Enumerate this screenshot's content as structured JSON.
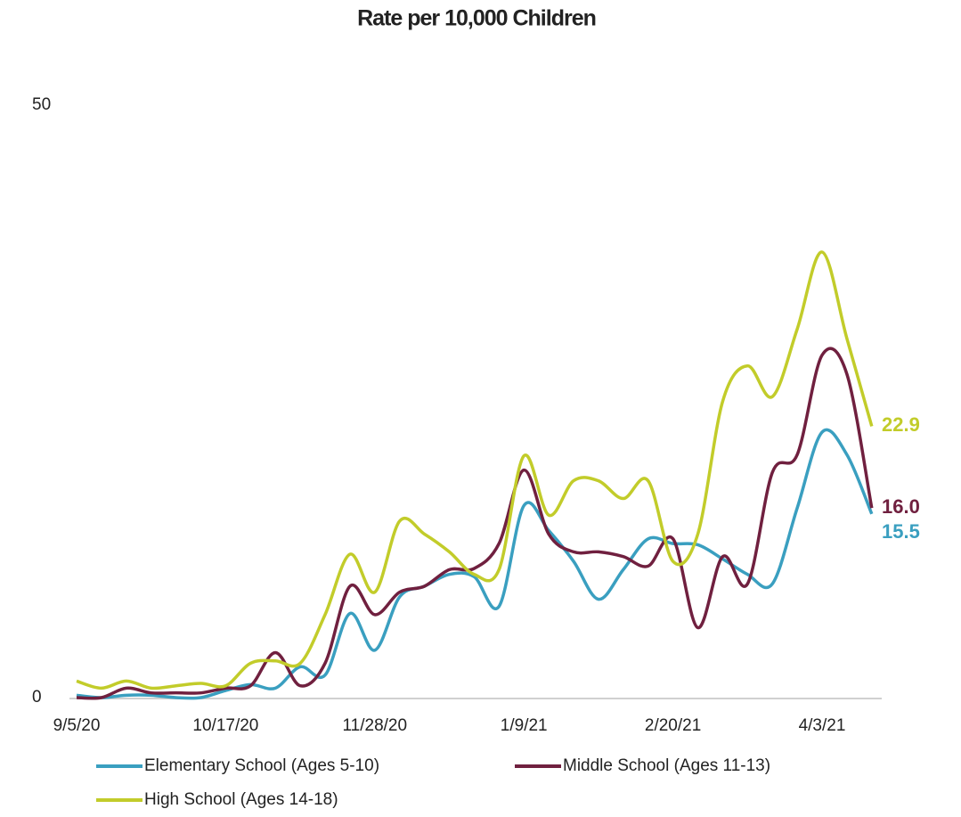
{
  "chart_data": {
    "type": "line",
    "title": "Rate per 10,000 Children",
    "categories": [
      "9/5/20",
      null,
      null,
      null,
      null,
      null,
      "10/17/20",
      null,
      null,
      null,
      null,
      null,
      "11/28/20",
      null,
      null,
      null,
      null,
      null,
      "1/9/21",
      null,
      null,
      null,
      null,
      null,
      "2/20/21",
      null,
      null,
      null,
      null,
      null,
      "4/3/21",
      null,
      null
    ],
    "ylim": [
      0,
      50
    ],
    "yticks": [
      0,
      50
    ],
    "grid": false,
    "series": [
      {
        "name": "Elementary School (Ages 5-10)",
        "color": "#3a9fc0",
        "values": [
          0.2,
          0,
          0.2,
          0.2,
          0,
          0,
          0.6,
          1.1,
          0.8,
          2.6,
          1.9,
          7.1,
          4.0,
          8.5,
          9.4,
          10.4,
          10.2,
          7.7,
          16.2,
          14.1,
          11.5,
          8.3,
          10.8,
          13.4,
          13.0,
          12.9,
          11.7,
          10.4,
          9.6,
          16.0,
          22.4,
          20.5,
          15.5
        ],
        "value_labels": [
          null,
          null,
          null,
          null,
          null,
          null,
          null,
          null,
          null,
          null,
          null,
          null,
          null,
          null,
          null,
          null,
          null,
          null,
          null,
          null,
          null,
          null,
          null,
          null,
          null,
          null,
          null,
          null,
          null,
          null,
          null,
          null,
          "15.5"
        ]
      },
      {
        "name": "Middle School (Ages 11-13)",
        "color": "#70203f",
        "values": [
          0,
          0,
          0.8,
          0.4,
          0.4,
          0.4,
          0.8,
          1.0,
          3.8,
          1.0,
          2.9,
          9.4,
          7.0,
          8.9,
          9.4,
          10.8,
          10.9,
          13.0,
          19.2,
          13.8,
          12.3,
          12.3,
          11.9,
          11.1,
          13.4,
          5.9,
          11.9,
          9.6,
          19.0,
          20.5,
          28.9,
          27.3,
          16.0
        ],
        "value_labels": [
          null,
          null,
          null,
          null,
          null,
          null,
          null,
          null,
          null,
          null,
          null,
          null,
          null,
          null,
          null,
          null,
          null,
          null,
          null,
          null,
          null,
          null,
          null,
          null,
          null,
          null,
          null,
          null,
          null,
          null,
          null,
          null,
          "16.0"
        ]
      },
      {
        "name": "High School (Ages 14-18)",
        "color": "#c2cc2a",
        "values": [
          1.4,
          0.8,
          1.4,
          0.8,
          1.0,
          1.2,
          1.0,
          2.9,
          3.1,
          2.9,
          7.0,
          12.1,
          8.9,
          14.9,
          13.8,
          12.3,
          10.4,
          10.8,
          20.4,
          15.4,
          18.3,
          18.3,
          16.8,
          18.3,
          11.5,
          13.8,
          25.0,
          28.0,
          25.4,
          31.1,
          37.6,
          30.3,
          22.9
        ],
        "value_labels": [
          null,
          null,
          null,
          null,
          null,
          null,
          null,
          null,
          null,
          null,
          null,
          null,
          null,
          null,
          null,
          null,
          null,
          null,
          null,
          null,
          null,
          null,
          null,
          null,
          null,
          null,
          null,
          null,
          null,
          null,
          null,
          null,
          "22.9"
        ]
      }
    ]
  }
}
